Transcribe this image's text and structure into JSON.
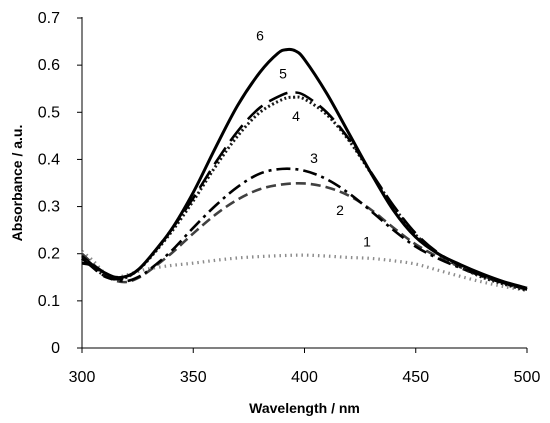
{
  "chart_data": {
    "type": "line",
    "title": "",
    "xlabel": "Wavelength / nm",
    "ylabel": "Absorbance / a.u.",
    "xlim": [
      300,
      500
    ],
    "ylim": [
      0,
      0.7
    ],
    "x_ticks": [
      300,
      350,
      400,
      450,
      500
    ],
    "y_ticks": [
      0,
      0.1,
      0.2,
      0.3,
      0.4,
      0.5,
      0.6,
      0.7
    ],
    "x_tick_labels": [
      "300",
      "350",
      "400",
      "450",
      "500"
    ],
    "y_tick_labels": [
      "0",
      "0.1",
      "0.2",
      "0.3",
      "0.4",
      "0.5",
      "0.6",
      "0.7"
    ],
    "grid": false,
    "legend": "none",
    "series": [
      {
        "label": "1",
        "color": "#8c8c8c",
        "style": "dotted",
        "points": [
          [
            300,
            0.205
          ],
          [
            305,
            0.185
          ],
          [
            310,
            0.16
          ],
          [
            315,
            0.15
          ],
          [
            320,
            0.155
          ],
          [
            325,
            0.162
          ],
          [
            330,
            0.168
          ],
          [
            340,
            0.175
          ],
          [
            350,
            0.18
          ],
          [
            360,
            0.186
          ],
          [
            370,
            0.191
          ],
          [
            380,
            0.194
          ],
          [
            390,
            0.196
          ],
          [
            400,
            0.197
          ],
          [
            410,
            0.195
          ],
          [
            420,
            0.192
          ],
          [
            430,
            0.19
          ],
          [
            440,
            0.185
          ],
          [
            450,
            0.178
          ],
          [
            460,
            0.165
          ],
          [
            470,
            0.152
          ],
          [
            480,
            0.14
          ],
          [
            490,
            0.13
          ],
          [
            500,
            0.122
          ]
        ]
      },
      {
        "label": "2",
        "color": "#404040",
        "style": "dashed",
        "points": [
          [
            300,
            0.2
          ],
          [
            305,
            0.178
          ],
          [
            310,
            0.155
          ],
          [
            315,
            0.143
          ],
          [
            320,
            0.14
          ],
          [
            325,
            0.148
          ],
          [
            330,
            0.163
          ],
          [
            340,
            0.2
          ],
          [
            350,
            0.243
          ],
          [
            360,
            0.283
          ],
          [
            370,
            0.315
          ],
          [
            380,
            0.337
          ],
          [
            390,
            0.347
          ],
          [
            400,
            0.349
          ],
          [
            410,
            0.341
          ],
          [
            420,
            0.323
          ],
          [
            430,
            0.293
          ],
          [
            440,
            0.255
          ],
          [
            450,
            0.22
          ],
          [
            460,
            0.193
          ],
          [
            470,
            0.172
          ],
          [
            480,
            0.153
          ],
          [
            490,
            0.138
          ],
          [
            500,
            0.125
          ]
        ]
      },
      {
        "label": "3",
        "color": "#000000",
        "style": "dashdot",
        "points": [
          [
            300,
            0.195
          ],
          [
            305,
            0.175
          ],
          [
            310,
            0.153
          ],
          [
            315,
            0.145
          ],
          [
            320,
            0.142
          ],
          [
            325,
            0.15
          ],
          [
            330,
            0.165
          ],
          [
            340,
            0.205
          ],
          [
            350,
            0.255
          ],
          [
            360,
            0.302
          ],
          [
            370,
            0.342
          ],
          [
            380,
            0.37
          ],
          [
            390,
            0.38
          ],
          [
            400,
            0.376
          ],
          [
            410,
            0.358
          ],
          [
            420,
            0.328
          ],
          [
            430,
            0.29
          ],
          [
            440,
            0.25
          ],
          [
            450,
            0.215
          ],
          [
            460,
            0.19
          ],
          [
            470,
            0.17
          ],
          [
            480,
            0.152
          ],
          [
            490,
            0.137
          ],
          [
            500,
            0.124
          ]
        ]
      },
      {
        "label": "4",
        "color": "#1a1a1a",
        "style": "dense-dotted",
        "points": [
          [
            300,
            0.19
          ],
          [
            305,
            0.172
          ],
          [
            310,
            0.154
          ],
          [
            315,
            0.147
          ],
          [
            320,
            0.15
          ],
          [
            325,
            0.165
          ],
          [
            330,
            0.188
          ],
          [
            340,
            0.245
          ],
          [
            350,
            0.312
          ],
          [
            360,
            0.385
          ],
          [
            370,
            0.45
          ],
          [
            380,
            0.5
          ],
          [
            390,
            0.527
          ],
          [
            395,
            0.532
          ],
          [
            400,
            0.528
          ],
          [
            410,
            0.495
          ],
          [
            420,
            0.44
          ],
          [
            430,
            0.37
          ],
          [
            440,
            0.3
          ],
          [
            450,
            0.24
          ],
          [
            460,
            0.2
          ],
          [
            470,
            0.172
          ],
          [
            480,
            0.15
          ],
          [
            490,
            0.135
          ],
          [
            500,
            0.122
          ]
        ]
      },
      {
        "label": "5",
        "color": "#000000",
        "style": "long-dash",
        "points": [
          [
            300,
            0.19
          ],
          [
            305,
            0.17
          ],
          [
            310,
            0.152
          ],
          [
            315,
            0.146
          ],
          [
            320,
            0.15
          ],
          [
            325,
            0.165
          ],
          [
            330,
            0.19
          ],
          [
            340,
            0.25
          ],
          [
            350,
            0.318
          ],
          [
            360,
            0.393
          ],
          [
            370,
            0.46
          ],
          [
            380,
            0.51
          ],
          [
            390,
            0.537
          ],
          [
            395,
            0.542
          ],
          [
            400,
            0.536
          ],
          [
            410,
            0.5
          ],
          [
            420,
            0.443
          ],
          [
            430,
            0.372
          ],
          [
            440,
            0.302
          ],
          [
            450,
            0.243
          ],
          [
            460,
            0.202
          ],
          [
            470,
            0.175
          ],
          [
            480,
            0.153
          ],
          [
            490,
            0.137
          ],
          [
            500,
            0.124
          ]
        ]
      },
      {
        "label": "6",
        "color": "#000000",
        "style": "solid",
        "points": [
          [
            300,
            0.18
          ],
          [
            305,
            0.175
          ],
          [
            310,
            0.16
          ],
          [
            315,
            0.15
          ],
          [
            320,
            0.152
          ],
          [
            325,
            0.165
          ],
          [
            330,
            0.19
          ],
          [
            340,
            0.25
          ],
          [
            350,
            0.33
          ],
          [
            360,
            0.425
          ],
          [
            370,
            0.515
          ],
          [
            380,
            0.585
          ],
          [
            388,
            0.625
          ],
          [
            392,
            0.633
          ],
          [
            396,
            0.63
          ],
          [
            400,
            0.612
          ],
          [
            410,
            0.54
          ],
          [
            420,
            0.455
          ],
          [
            430,
            0.37
          ],
          [
            440,
            0.292
          ],
          [
            450,
            0.235
          ],
          [
            460,
            0.2
          ],
          [
            470,
            0.177
          ],
          [
            480,
            0.157
          ],
          [
            490,
            0.14
          ],
          [
            500,
            0.127
          ]
        ]
      }
    ]
  }
}
